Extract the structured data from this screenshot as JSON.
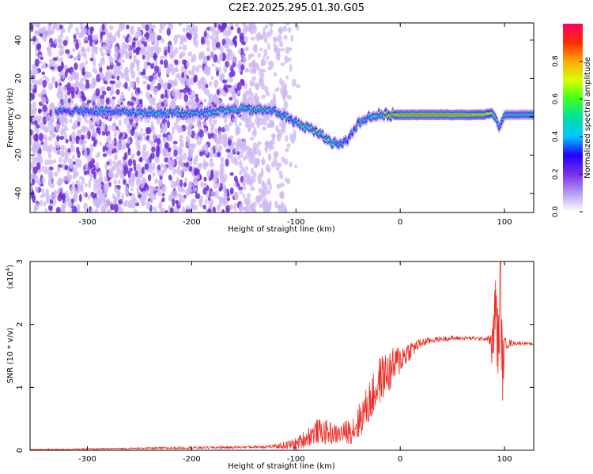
{
  "title": "C2E2.2025.295.01.30.G05",
  "colors": {
    "scatter_sparse": "#cdb7f3",
    "scatter_dense": "#6f2bdc",
    "snr_line": "#ee2c22",
    "axis": "#000000"
  },
  "chart_data": [
    {
      "type": "heatmap",
      "title": "",
      "xlabel": "Height of straight line (km)",
      "ylabel": "Frequency (Hz)",
      "xlim": [
        -355,
        128
      ],
      "ylim": [
        -50,
        49
      ],
      "xticks": [
        -300,
        -200,
        -100,
        0,
        100
      ],
      "xtick_labels": [
        "-300",
        "-200",
        "-100",
        "0",
        "100"
      ],
      "yticks": [
        -40,
        -20,
        0,
        20,
        40
      ],
      "ytick_labels": [
        "-40",
        "-20",
        "0",
        "20",
        "40"
      ],
      "grid": false,
      "colorbar": {
        "label": "Normalized spectral amplitude",
        "range": [
          0,
          1
        ],
        "ticks": [
          0.0,
          0.2,
          0.4,
          0.6,
          0.8
        ],
        "tick_labels": [
          "0.0",
          "0.2",
          "0.4",
          "0.6",
          "0.8"
        ],
        "stops": [
          "#ffffff",
          "#b49af0",
          "#7b2fe8",
          "#2000ff",
          "#00c8ff",
          "#00e0a0",
          "#40ff20",
          "#d8ff00",
          "#ffa800",
          "#ff2a00",
          "#ff0066"
        ]
      },
      "ridge": {
        "x": [
          -330,
          -300,
          -250,
          -200,
          -150,
          -120,
          -100,
          -80,
          -60,
          -50,
          -40,
          -30,
          -20,
          -10,
          0,
          20,
          50,
          80,
          88,
          92,
          95,
          100,
          128
        ],
        "y": [
          3,
          3,
          2,
          2,
          4,
          3,
          -3,
          -8,
          -15,
          -12,
          -3,
          0,
          1,
          1,
          1,
          1,
          1,
          1,
          2,
          -1,
          -6,
          1,
          1
        ],
        "peak_amplitude": [
          0.4,
          0.45,
          0.45,
          0.45,
          0.5,
          0.5,
          0.5,
          0.55,
          0.5,
          0.4,
          0.45,
          0.5,
          0.55,
          0.7,
          0.85,
          0.85,
          0.85,
          0.8,
          0.7,
          0.5,
          0.4,
          0.5,
          0.5
        ]
      },
      "noise_region": {
        "x": [
          -355,
          -140
        ],
        "fade_to": -95,
        "ylim": [
          -50,
          49
        ]
      }
    },
    {
      "type": "line",
      "title": "",
      "xlabel": "Height of straight line (km)",
      "ylabel": "SNR (10 * v/v)",
      "y_multiplier_label": "(x10",
      "y_multiplier_exp": "4",
      "xlim": [
        -355,
        128
      ],
      "ylim": [
        0,
        3
      ],
      "xticks": [
        -300,
        -200,
        -100,
        0,
        100
      ],
      "xtick_labels": [
        "-300",
        "-200",
        "-100",
        "0",
        "100"
      ],
      "yticks": [
        0,
        1,
        2,
        3
      ],
      "ytick_labels": [
        "0",
        "1",
        "2",
        "3"
      ],
      "grid": false,
      "series": [
        {
          "color": "#ee2c22",
          "x": [
            -355,
            -300,
            -250,
            -200,
            -150,
            -120,
            -100,
            -90,
            -80,
            -70,
            -60,
            -50,
            -45,
            -40,
            -35,
            -30,
            -25,
            -20,
            -15,
            -10,
            -5,
            0,
            10,
            20,
            30,
            40,
            50,
            60,
            70,
            80,
            85,
            88,
            90,
            92,
            94,
            96,
            98,
            100,
            110,
            120,
            128
          ],
          "y": [
            0.01,
            0.02,
            0.03,
            0.04,
            0.05,
            0.06,
            0.1,
            0.2,
            0.3,
            0.28,
            0.25,
            0.3,
            0.35,
            0.45,
            0.6,
            0.75,
            0.9,
            1.1,
            1.2,
            1.25,
            1.35,
            1.45,
            1.6,
            1.7,
            1.75,
            1.77,
            1.78,
            1.78,
            1.78,
            1.77,
            1.78,
            1.6,
            2.0,
            2.3,
            1.5,
            2.7,
            1.2,
            1.7,
            1.7,
            1.7,
            1.68
          ],
          "noise_amplitude": [
            0.01,
            0.01,
            0.015,
            0.02,
            0.02,
            0.03,
            0.1,
            0.15,
            0.2,
            0.2,
            0.15,
            0.2,
            0.25,
            0.3,
            0.3,
            0.35,
            0.35,
            0.4,
            0.35,
            0.35,
            0.3,
            0.25,
            0.15,
            0.08,
            0.05,
            0.04,
            0.04,
            0.03,
            0.03,
            0.03,
            0.05,
            0.3,
            0.6,
            0.6,
            0.6,
            0.8,
            0.6,
            0.1,
            0.03,
            0.02,
            0.02
          ]
        }
      ]
    }
  ]
}
